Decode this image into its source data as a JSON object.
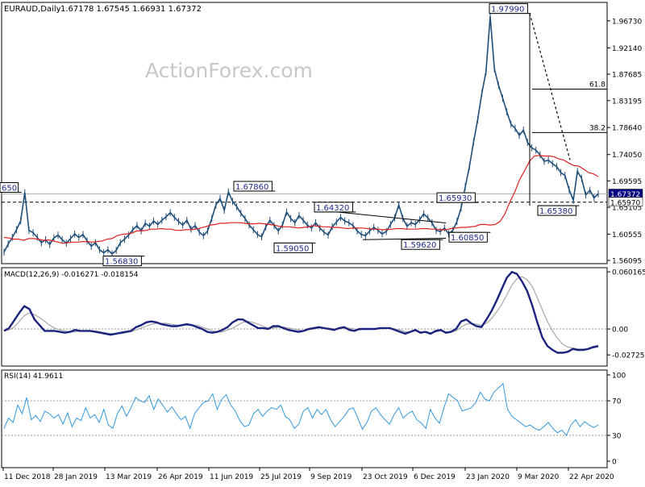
{
  "header": {
    "symbol": "EURAUD,Daily",
    "ohlc": "1.67178 1.67545 1.66931 1.67372"
  },
  "watermark": "ActionForex.com",
  "chart_data": {
    "type": "line",
    "symbol": "EURAUD",
    "timeframe": "Daily",
    "x_labels": [
      "11 Dec 2018",
      "28 Jan 2019",
      "13 Mar 2019",
      "26 Apr 2019",
      "11 Jun 2019",
      "25 Jul 2019",
      "9 Sep 2019",
      "23 Oct 2019",
      "6 Dec 2019",
      "23 Jan 2020",
      "9 Mar 2020",
      "22 Apr 2020"
    ],
    "price": {
      "ylim": [
        1.5555,
        1.9985
      ],
      "ticks": [
        "1.96730",
        "1.92140",
        "1.87685",
        "1.83195",
        "1.78640",
        "1.74050",
        "1.69595",
        "1.65105",
        "1.60555",
        "1.56095"
      ],
      "last_price": "1.67372",
      "horizontal_line_value": "1.65970",
      "levels": [
        {
          "label": "1.97990",
          "value": 1.9799
        },
        {
          "label": "1.67860",
          "value": 1.6786
        },
        {
          "label": "1.64320",
          "value": 1.6432
        },
        {
          "label": "1.65930",
          "value": 1.6593
        },
        {
          "label": "1.59050",
          "value": 1.5905
        },
        {
          "label": "1.59620",
          "value": 1.5962
        },
        {
          "label": "1.60850",
          "value": 1.6085
        },
        {
          "label": "1.56830",
          "value": 1.5683
        },
        {
          "label": "1.65380",
          "value": 1.6538
        },
        {
          "label": "650",
          "value": 1.6765
        }
      ],
      "fib_levels": [
        {
          "label": "61.8",
          "value": 1.8515
        },
        {
          "label": "38.2",
          "value": 1.7778
        }
      ],
      "close_series": [
        1.575,
        1.589,
        1.6,
        1.613,
        1.628,
        1.676,
        1.612,
        1.608,
        1.6,
        1.591,
        1.596,
        1.588,
        1.599,
        1.604,
        1.596,
        1.59,
        1.598,
        1.606,
        1.6,
        1.605,
        1.594,
        1.585,
        1.591,
        1.579,
        1.574,
        1.579,
        1.572,
        1.578,
        1.591,
        1.597,
        1.604,
        1.613,
        1.62,
        1.611,
        1.624,
        1.619,
        1.628,
        1.622,
        1.629,
        1.635,
        1.642,
        1.634,
        1.627,
        1.621,
        1.629,
        1.614,
        1.62,
        1.609,
        1.603,
        1.611,
        1.632,
        1.655,
        1.666,
        1.646,
        1.677,
        1.661,
        1.652,
        1.641,
        1.632,
        1.621,
        1.613,
        1.605,
        1.601,
        1.618,
        1.629,
        1.62,
        1.611,
        1.621,
        1.643,
        1.632,
        1.625,
        1.637,
        1.629,
        1.621,
        1.616,
        1.625,
        1.616,
        1.609,
        1.604,
        1.618,
        1.626,
        1.634,
        1.628,
        1.625,
        1.62,
        1.611,
        1.605,
        1.603,
        1.611,
        1.617,
        1.612,
        1.606,
        1.61,
        1.622,
        1.633,
        1.655,
        1.632,
        1.619,
        1.625,
        1.622,
        1.63,
        1.64,
        1.633,
        1.625,
        1.612,
        1.61,
        1.616,
        1.606,
        1.612,
        1.627,
        1.65,
        1.686,
        1.72,
        1.762,
        1.8,
        1.845,
        1.881,
        1.975,
        1.886,
        1.858,
        1.836,
        1.813,
        1.792,
        1.785,
        1.773,
        1.782,
        1.761,
        1.752,
        1.748,
        1.74,
        1.729,
        1.731,
        1.725,
        1.72,
        1.71,
        1.705,
        1.681,
        1.663,
        1.712,
        1.7,
        1.672,
        1.68,
        1.667,
        1.674
      ]
    },
    "price_ma": {
      "values": [
        1.6,
        1.599,
        1.597,
        1.597,
        1.595,
        1.598,
        1.598,
        1.597,
        1.595,
        1.596,
        1.594,
        1.592,
        1.59,
        1.591,
        1.592,
        1.592,
        1.593,
        1.593,
        1.592,
        1.593,
        1.594,
        1.597,
        1.598,
        1.603,
        1.605,
        1.606,
        1.607,
        1.611,
        1.611,
        1.612,
        1.614,
        1.614,
        1.615,
        1.614,
        1.614,
        1.612,
        1.612,
        1.613,
        1.613,
        1.614,
        1.616,
        1.618,
        1.621,
        1.622,
        1.624,
        1.624,
        1.625,
        1.625,
        1.625,
        1.624,
        1.623,
        1.623,
        1.624,
        1.623,
        1.622,
        1.621,
        1.619,
        1.618,
        1.618,
        1.617,
        1.616,
        1.617,
        1.618,
        1.62,
        1.619,
        1.618,
        1.618,
        1.617,
        1.617,
        1.616,
        1.615,
        1.616,
        1.616,
        1.616,
        1.615,
        1.614,
        1.614,
        1.613,
        1.613,
        1.614,
        1.615,
        1.615,
        1.614,
        1.614,
        1.614,
        1.615,
        1.615,
        1.614,
        1.614,
        1.613,
        1.613,
        1.615,
        1.616,
        1.617,
        1.617,
        1.618,
        1.619,
        1.622,
        1.622,
        1.621,
        1.622,
        1.627,
        1.64,
        1.66,
        1.677,
        1.698,
        1.713,
        1.729,
        1.738,
        1.739,
        1.738,
        1.738,
        1.737,
        1.733,
        1.731,
        1.726,
        1.722,
        1.721,
        1.716,
        1.71,
        1.708,
        1.703
      ]
    },
    "macd": {
      "label": "MACD(12,26,9) -0.016271 -0.018154",
      "ylim": [
        -0.039,
        0.0645
      ],
      "ticks": [
        "0.060165",
        "0.00",
        "-0.02725"
      ],
      "main_series": [
        -0.002,
        0.001,
        0.009,
        0.017,
        0.024,
        0.021,
        0.01,
        0.004,
        -0.002,
        -0.002,
        -0.002,
        -0.003,
        -0.004,
        -0.003,
        -0.001,
        -0.002,
        -0.002,
        -0.002,
        -0.003,
        -0.004,
        -0.005,
        -0.006,
        -0.005,
        -0.004,
        -0.003,
        -0.002,
        0.002,
        0.004,
        0.007,
        0.008,
        0.007,
        0.005,
        0.004,
        0.003,
        0.003,
        0.004,
        0.005,
        0.004,
        0.002,
        0.0,
        -0.003,
        -0.004,
        -0.003,
        -0.001,
        0.002,
        0.007,
        0.01,
        0.01,
        0.007,
        0.004,
        0.001,
        0.001,
        0.0,
        0.003,
        0.003,
        0.001,
        -0.001,
        -0.002,
        -0.003,
        -0.002,
        0.0,
        0.001,
        0.002,
        0.001,
        0.0,
        -0.001,
        0.001,
        0.002,
        -0.001,
        -0.002,
        0.0,
        0.0,
        0.0,
        0.0,
        0.001,
        0.001,
        0.001,
        -0.001,
        -0.003,
        -0.005,
        -0.003,
        -0.001,
        -0.004,
        -0.003,
        -0.005,
        -0.002,
        -0.001,
        -0.004,
        -0.003,
        0.0,
        0.008,
        0.01,
        0.006,
        0.003,
        0.002,
        0.01,
        0.019,
        0.03,
        0.042,
        0.054,
        0.06,
        0.058,
        0.05,
        0.04,
        0.025,
        0.007,
        -0.009,
        -0.018,
        -0.022,
        -0.025,
        -0.025,
        -0.024,
        -0.021,
        -0.022,
        -0.022,
        -0.021,
        -0.019,
        -0.018
      ],
      "signal_series": [
        -0.002,
        -0.001,
        0.002,
        0.008,
        0.014,
        0.017,
        0.015,
        0.012,
        0.008,
        0.004,
        0.001,
        -0.001,
        -0.002,
        -0.003,
        -0.003,
        -0.002,
        -0.002,
        -0.002,
        -0.002,
        -0.003,
        -0.004,
        -0.005,
        -0.005,
        -0.005,
        -0.004,
        -0.003,
        -0.001,
        0.001,
        0.003,
        0.005,
        0.006,
        0.006,
        0.006,
        0.005,
        0.004,
        0.004,
        0.004,
        0.004,
        0.004,
        0.002,
        0.0,
        -0.002,
        -0.003,
        -0.003,
        -0.001,
        0.001,
        0.004,
        0.007,
        0.008,
        0.007,
        0.005,
        0.003,
        0.001,
        0.001,
        0.002,
        0.002,
        0.001,
        0.0,
        -0.001,
        -0.002,
        -0.001,
        0.0,
        0.001,
        0.001,
        0.001,
        0.0,
        0.0,
        0.001,
        0.001,
        0.0,
        -0.001,
        0.0,
        0.0,
        0.0,
        0.0,
        0.001,
        0.001,
        0.0,
        -0.001,
        -0.003,
        -0.003,
        -0.002,
        -0.003,
        -0.003,
        -0.004,
        -0.003,
        -0.002,
        -0.003,
        -0.003,
        -0.002,
        0.002,
        0.005,
        0.006,
        0.005,
        0.004,
        0.006,
        0.011,
        0.018,
        0.026,
        0.036,
        0.046,
        0.053,
        0.055,
        0.052,
        0.045,
        0.033,
        0.02,
        0.008,
        -0.002,
        -0.01,
        -0.016,
        -0.019,
        -0.02,
        -0.021,
        -0.021,
        -0.021,
        -0.02,
        -0.019
      ]
    },
    "rsi": {
      "label": "RSI(14) 41.9611",
      "ylim": [
        0,
        100
      ],
      "ticks": [
        "100",
        "70",
        "30",
        "0"
      ],
      "levels": [
        30,
        70
      ],
      "series": [
        38,
        50,
        45,
        65,
        55,
        74,
        48,
        53,
        46,
        58,
        55,
        50,
        54,
        43,
        56,
        40,
        50,
        47,
        62,
        50,
        54,
        45,
        60,
        42,
        38,
        55,
        64,
        52,
        62,
        74,
        70,
        68,
        76,
        60,
        72,
        65,
        57,
        63,
        55,
        48,
        52,
        38,
        55,
        62,
        68,
        70,
        78,
        60,
        72,
        77,
        65,
        58,
        47,
        40,
        42,
        55,
        60,
        52,
        58,
        62,
        60,
        65,
        52,
        48,
        38,
        43,
        58,
        62,
        50,
        60,
        54,
        60,
        48,
        40,
        46,
        52,
        60,
        62,
        50,
        37,
        45,
        58,
        62,
        54,
        48,
        43,
        54,
        62,
        50,
        55,
        58,
        48,
        44,
        38,
        60,
        50,
        44,
        62,
        78,
        74,
        70,
        58,
        60,
        62,
        68,
        80,
        72,
        70,
        80,
        85,
        90,
        60,
        52,
        48,
        44,
        40,
        42,
        38,
        36,
        40,
        45,
        38,
        33,
        36,
        30,
        42,
        48,
        40,
        46,
        42,
        39,
        42
      ]
    },
    "grid": false,
    "legend": "none"
  }
}
